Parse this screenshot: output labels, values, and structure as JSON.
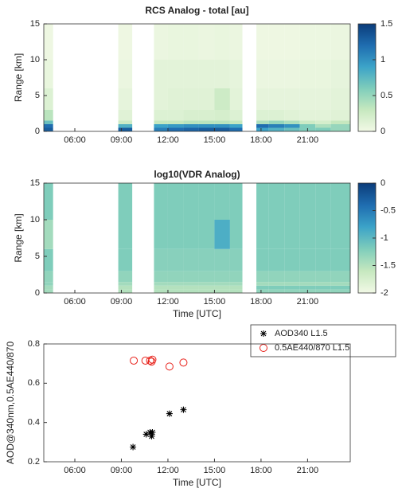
{
  "chart_data": [
    {
      "type": "heatmap",
      "title": "RCS Analog - total [au]",
      "ylabel": "Range [km]",
      "xlim": [
        4,
        23.75
      ],
      "ylim": [
        0,
        15
      ],
      "xticks": [
        {
          "value": 6,
          "label": "06:00"
        },
        {
          "value": 9,
          "label": "09:00"
        },
        {
          "value": 12,
          "label": "12:00"
        },
        {
          "value": 15,
          "label": "15:00"
        },
        {
          "value": 18,
          "label": "18:00"
        },
        {
          "value": 21,
          "label": "21:00"
        }
      ],
      "yticks": [
        0,
        5,
        10,
        15
      ],
      "clim": [
        0,
        1.5
      ],
      "cticks": [
        0,
        0.5,
        1,
        1.5
      ],
      "colormap": [
        "#f2f9e6",
        "#c6e8bf",
        "#7fcdbb",
        "#3ca3c8",
        "#1f6db0",
        "#0b3c7a"
      ],
      "xbins": [
        4,
        4.6,
        8.8,
        9.7,
        11.1,
        12,
        13,
        14,
        15,
        16,
        16.8,
        17.7,
        18.5,
        19.5,
        20.5,
        21.5,
        22.5,
        23.75
      ],
      "ybins": [
        0,
        0.5,
        1,
        1.5,
        3,
        6,
        10,
        15
      ],
      "z": [
        [
          1.3,
          1.2,
          0.7,
          0.35,
          0.15,
          0.06,
          0.03
        ],
        [
          null,
          null,
          null,
          null,
          null,
          null,
          null
        ],
        [
          1.3,
          0.8,
          0.25,
          0.12,
          0.08,
          0.05,
          0.03
        ],
        [
          null,
          null,
          null,
          null,
          null,
          null,
          null
        ],
        [
          1.1,
          0.9,
          0.3,
          0.15,
          0.1,
          0.1,
          0.05
        ],
        [
          1.2,
          0.95,
          0.3,
          0.15,
          0.12,
          0.1,
          0.06
        ],
        [
          1.25,
          1.0,
          0.35,
          0.18,
          0.12,
          0.1,
          0.06
        ],
        [
          1.3,
          1.0,
          0.35,
          0.18,
          0.12,
          0.1,
          0.05
        ],
        [
          1.3,
          1.0,
          0.35,
          0.2,
          0.25,
          0.1,
          0.06
        ],
        [
          1.2,
          0.9,
          0.3,
          0.15,
          0.1,
          0.08,
          0.05
        ],
        [
          null,
          null,
          null,
          null,
          null,
          null,
          null
        ],
        [
          0.9,
          1.2,
          0.4,
          0.15,
          0.08,
          0.05,
          0.03
        ],
        [
          0.8,
          1.1,
          0.5,
          0.15,
          0.08,
          0.05,
          0.03
        ],
        [
          0.7,
          1.0,
          0.4,
          0.12,
          0.08,
          0.05,
          0.03
        ],
        [
          0.6,
          0.6,
          0.25,
          0.1,
          0.08,
          0.06,
          0.04
        ],
        [
          0.6,
          0.4,
          0.2,
          0.1,
          0.08,
          0.06,
          0.04
        ],
        [
          0.5,
          0.5,
          0.3,
          0.12,
          0.1,
          0.08,
          0.05
        ]
      ]
    },
    {
      "type": "heatmap",
      "title": "log10(VDR Analog)",
      "ylabel": "Range [km]",
      "xlabel": "Time [UTC]",
      "xlim": [
        4,
        23.75
      ],
      "ylim": [
        0,
        15
      ],
      "xticks": [
        {
          "value": 6,
          "label": "06:00"
        },
        {
          "value": 9,
          "label": "09:00"
        },
        {
          "value": 12,
          "label": "12:00"
        },
        {
          "value": 15,
          "label": "15:00"
        },
        {
          "value": 18,
          "label": "18:00"
        },
        {
          "value": 21,
          "label": "21:00"
        }
      ],
      "yticks": [
        0,
        5,
        10,
        15
      ],
      "clim": [
        -2,
        0
      ],
      "cticks": [
        0,
        -0.5,
        -1,
        -1.5,
        -2
      ],
      "colormap": [
        "#f2f9e6",
        "#c6e8bf",
        "#7fcdbb",
        "#3ca3c8",
        "#1f6db0",
        "#0b3c7a"
      ],
      "xbins": [
        4,
        4.6,
        8.8,
        9.7,
        11.1,
        12,
        13,
        14,
        15,
        16,
        16.8,
        17.7,
        18.5,
        19.5,
        20.5,
        21.5,
        22.5,
        23.75
      ],
      "ybins": [
        0,
        0.5,
        1,
        1.5,
        3,
        6,
        10,
        15
      ],
      "z": [
        [
          -1.4,
          -1.4,
          -1.3,
          -1.3,
          -1.2,
          -1.4,
          -1.2
        ],
        [
          null,
          null,
          null,
          null,
          null,
          null,
          null
        ],
        [
          -1.5,
          -1.5,
          -1.4,
          -1.3,
          -1.2,
          -1.2,
          -1.2
        ],
        [
          null,
          null,
          null,
          null,
          null,
          null,
          null
        ],
        [
          -1.5,
          -1.5,
          -1.4,
          -1.3,
          -1.25,
          -1.2,
          -1.2
        ],
        [
          -1.5,
          -1.5,
          -1.4,
          -1.3,
          -1.25,
          -1.2,
          -1.2
        ],
        [
          -1.5,
          -1.5,
          -1.4,
          -1.3,
          -1.25,
          -1.2,
          -1.2
        ],
        [
          -1.5,
          -1.5,
          -1.4,
          -1.3,
          -1.25,
          -1.2,
          -1.2
        ],
        [
          -1.5,
          -1.5,
          -1.4,
          -1.3,
          -1.25,
          -0.9,
          -1.2
        ],
        [
          -1.5,
          -1.5,
          -1.4,
          -1.3,
          -1.25,
          -1.2,
          -1.2
        ],
        [
          null,
          null,
          null,
          null,
          null,
          null,
          null
        ],
        [
          -1.3,
          -1.2,
          -1.4,
          -1.3,
          -1.2,
          -1.2,
          -1.2
        ],
        [
          -1.3,
          -1.2,
          -1.4,
          -1.3,
          -1.2,
          -1.2,
          -1.2
        ],
        [
          -1.3,
          -1.2,
          -1.4,
          -1.3,
          -1.2,
          -1.2,
          -1.2
        ],
        [
          -1.3,
          -1.2,
          -1.4,
          -1.3,
          -1.2,
          -1.2,
          -1.2
        ],
        [
          -1.3,
          -1.2,
          -1.4,
          -1.3,
          -1.2,
          -1.2,
          -1.2
        ],
        [
          -1.3,
          -1.2,
          -1.4,
          -1.3,
          -1.2,
          -1.2,
          -1.2
        ]
      ]
    },
    {
      "type": "scatter",
      "ylabel": "AOD@340nm,0.5AE440/870",
      "xlabel": "Time [UTC]",
      "xlim": [
        4,
        23.75
      ],
      "ylim": [
        0.2,
        0.8
      ],
      "xticks": [
        {
          "value": 6,
          "label": "06:00"
        },
        {
          "value": 9,
          "label": "09:00"
        },
        {
          "value": 12,
          "label": "12:00"
        },
        {
          "value": 15,
          "label": "15:00"
        },
        {
          "value": 18,
          "label": "18:00"
        },
        {
          "value": 21,
          "label": "21:00"
        }
      ],
      "yticks": [
        0.2,
        0.4,
        0.6,
        0.8
      ],
      "legend": "upper right",
      "series": [
        {
          "name": "AOD340 L1.5",
          "color": "#000000",
          "marker": "asterisk",
          "x": [
            9.75,
            10.6,
            10.85,
            10.95,
            11.0,
            12.1,
            13.0
          ],
          "values": [
            0.275,
            0.34,
            0.35,
            0.33,
            0.35,
            0.445,
            0.465
          ]
        },
        {
          "name": "0.5AE440/870 L1.5",
          "color": "#e8221b",
          "marker": "circle",
          "x": [
            9.8,
            10.55,
            10.85,
            10.95,
            11.0,
            12.1,
            13.0
          ],
          "values": [
            0.715,
            0.715,
            0.715,
            0.71,
            0.72,
            0.685,
            0.705
          ]
        }
      ]
    }
  ]
}
